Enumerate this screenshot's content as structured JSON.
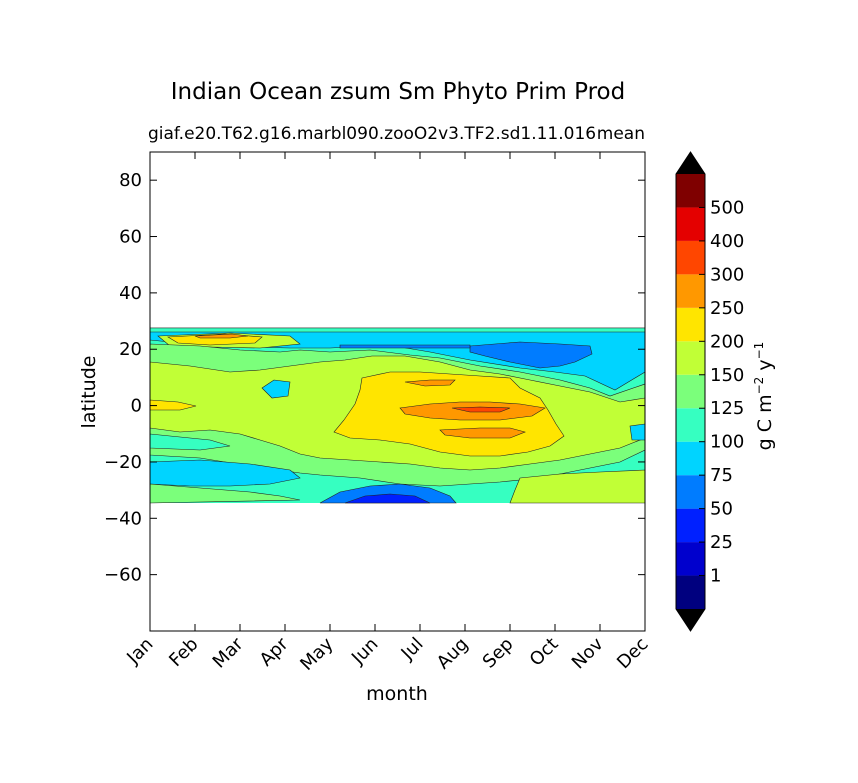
{
  "chart_data": {
    "type": "heatmap",
    "title": "Indian Ocean zsum Sm Phyto Prim Prod",
    "subtitle_left": "giaf.e20.T62.g16.marbl090.zooO2v3.TF2.sd1.11.016",
    "subtitle_right": "mean",
    "xlabel": "month",
    "ylabel": "latitude",
    "x_categories": [
      "Jan",
      "Feb",
      "Mar",
      "Apr",
      "May",
      "Jun",
      "Jul",
      "Aug",
      "Sep",
      "Oct",
      "Nov",
      "Dec"
    ],
    "ylim": [
      -80,
      90
    ],
    "yticks": [
      80,
      60,
      40,
      20,
      0,
      -20,
      -40,
      -60
    ],
    "ytick_labels": [
      "80",
      "60",
      "40",
      "20",
      "0",
      "−20",
      "−40",
      "−60"
    ],
    "data_lat_range": [
      -34,
      27
    ],
    "colorbar": {
      "label_main": "g C m",
      "label_exp1": "−2",
      "label_mid": " y",
      "label_exp2": "−1",
      "levels": [
        0,
        1,
        25,
        50,
        75,
        100,
        125,
        150,
        200,
        250,
        300,
        400,
        500,
        600
      ],
      "tick_labels": [
        "1",
        "25",
        "50",
        "75",
        "100",
        "125",
        "150",
        "200",
        "250",
        "300",
        "400",
        "500"
      ],
      "colors": [
        "#00007f",
        "#0000cd",
        "#0020ff",
        "#007cff",
        "#00d4ff",
        "#36ffc1",
        "#7bff7b",
        "#c1ff36",
        "#ffe500",
        "#ff9800",
        "#ff4600",
        "#e40000",
        "#7f0000"
      ],
      "under_color": "#000000",
      "over_color": "#000000"
    },
    "contour_regions": [
      {
        "level": "75-100",
        "color": "#00d4ff",
        "month": "Jan",
        "lat": 24
      },
      {
        "level": "200-250",
        "color": "#ffe500",
        "month": "Mar",
        "lat": 24
      },
      {
        "level": "250-300",
        "color": "#ff9800",
        "month": "Mar",
        "lat": 25
      },
      {
        "level": "25-50",
        "color": "#0020ff",
        "month": "Jun",
        "lat": -33
      },
      {
        "level": "50-75",
        "color": "#007cff",
        "month": "Sep",
        "lat": 18
      },
      {
        "level": "200-250",
        "color": "#ffe500",
        "month": "Aug",
        "lat": 0
      },
      {
        "level": "250-300",
        "color": "#ff9800",
        "month": "Aug",
        "lat": 8
      },
      {
        "level": "300-400",
        "color": "#ff4600",
        "month": "Aug",
        "lat": -2
      },
      {
        "level": "150-200",
        "color": "#c1ff36",
        "month": "Jan",
        "lat": 10
      }
    ]
  }
}
